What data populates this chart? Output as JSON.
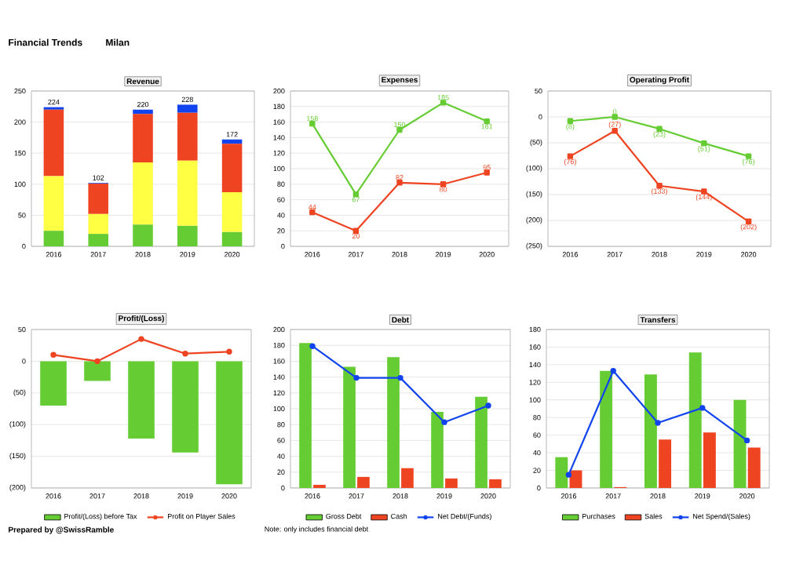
{
  "chart_data": [
    {
      "type": "bar",
      "title": "Revenue",
      "stacked": true,
      "categories": [
        "2016",
        "2017",
        "2018",
        "2019",
        "2020"
      ],
      "ylim": [
        0,
        250
      ],
      "yticks": [
        0,
        50,
        100,
        150,
        200,
        250
      ],
      "grid": "y",
      "totals": [
        "224",
        "102",
        "220",
        "228",
        "172"
      ],
      "series": [
        {
          "color": "#66cc33",
          "values": [
            25,
            20,
            35,
            33,
            23
          ]
        },
        {
          "color": "#ffff44",
          "values": [
            88,
            32,
            100,
            105,
            64
          ]
        },
        {
          "color": "#ee4422",
          "values": [
            107,
            49,
            78,
            77,
            78
          ]
        },
        {
          "color": "#1144ee",
          "values": [
            4,
            1,
            7,
            13,
            7
          ]
        }
      ]
    },
    {
      "type": "line",
      "title": "Expenses",
      "categories": [
        "2016",
        "2017",
        "2018",
        "2019",
        "2020"
      ],
      "ylim": [
        0,
        200
      ],
      "yticks": [
        0,
        20,
        40,
        60,
        80,
        100,
        120,
        140,
        160,
        180,
        200
      ],
      "grid": "y",
      "marker": "square",
      "data_labels": true,
      "series": [
        {
          "color": "#66cc33",
          "values": [
            158,
            67,
            150,
            185,
            161
          ]
        },
        {
          "color": "#ee4422",
          "values": [
            44,
            20,
            82,
            80,
            95
          ]
        }
      ]
    },
    {
      "type": "line",
      "title": "Operating Profit",
      "categories": [
        "2016",
        "2017",
        "2018",
        "2019",
        "2020"
      ],
      "ylim": [
        -250,
        50
      ],
      "yticks": [
        50,
        0,
        {
          "value": -50,
          "label": "(50)"
        },
        {
          "value": -100,
          "label": "(100)"
        },
        {
          "value": -150,
          "label": "(150)"
        },
        {
          "value": -200,
          "label": "(200)"
        },
        {
          "value": -250,
          "label": "(250)"
        }
      ],
      "grid": "y",
      "marker": "square",
      "series": [
        {
          "color": "#66cc33",
          "values": [
            -8,
            0,
            -23,
            -51,
            -76
          ],
          "value_labels": [
            "(8)",
            "0",
            "(23)",
            "(51)",
            "(76)"
          ]
        },
        {
          "color": "#ee4422",
          "values": [
            -76,
            -27,
            -133,
            -144,
            -202
          ],
          "value_labels": [
            "(76)",
            "(27)",
            "(133)",
            "(144)",
            "(202)"
          ]
        }
      ]
    },
    {
      "type": "bar",
      "title": "Profit/(Loss)",
      "categories": [
        "2016",
        "2017",
        "2018",
        "2019",
        "2020"
      ],
      "ylim": [
        -200,
        50
      ],
      "yticks": [
        50,
        0,
        {
          "value": -50,
          "label": "(50)"
        },
        {
          "value": -100,
          "label": "(100)"
        },
        {
          "value": -150,
          "label": "(150)"
        },
        {
          "value": -200,
          "label": "(200)"
        }
      ],
      "grid": "y",
      "legend": "bottom",
      "marker": "circle",
      "series": [
        {
          "name": "Profit/(Loss) before Tax",
          "color": "#66cc33",
          "values": [
            -70,
            -31,
            -122,
            -144,
            -194
          ]
        },
        {
          "name": "Profit on Player Sales",
          "type": "line",
          "color": "#ee4422",
          "values": [
            10,
            0,
            35,
            12,
            15
          ]
        }
      ]
    },
    {
      "type": "bar",
      "title": "Debt",
      "categories": [
        "2016",
        "2017",
        "2018",
        "2019",
        "2020"
      ],
      "ylim": [
        0,
        200
      ],
      "yticks": [
        0,
        20,
        40,
        60,
        80,
        100,
        120,
        140,
        160,
        180,
        200
      ],
      "grid": "y",
      "legend": "bottom",
      "marker": "circle",
      "annotations": [
        "Note: only includes financial debt"
      ],
      "series": [
        {
          "name": "Gross Debt",
          "color": "#66cc33",
          "values": [
            183,
            153,
            165,
            96,
            115
          ]
        },
        {
          "name": "Cash",
          "color": "#ee4422",
          "values": [
            4,
            14,
            25,
            12,
            11
          ]
        },
        {
          "name": "Net Debt/(Funds)",
          "type": "line",
          "color": "#1144ee",
          "values": [
            179,
            139,
            139,
            83,
            104
          ]
        }
      ]
    },
    {
      "type": "bar",
      "title": "Transfers",
      "categories": [
        "2016",
        "2017",
        "2018",
        "2019",
        "2020"
      ],
      "ylim": [
        0,
        180
      ],
      "yticks": [
        0,
        20,
        40,
        60,
        80,
        100,
        120,
        140,
        160,
        180
      ],
      "grid": "y",
      "legend": "bottom",
      "marker": "circle",
      "series": [
        {
          "name": "Purchases",
          "color": "#66cc33",
          "values": [
            35,
            133,
            129,
            154,
            100
          ]
        },
        {
          "name": "Sales",
          "color": "#ee4422",
          "values": [
            20,
            1,
            55,
            63,
            46
          ]
        },
        {
          "name": "Net Spend/(Sales)",
          "type": "line",
          "color": "#1144ee",
          "values": [
            15,
            133,
            74,
            91,
            54
          ]
        }
      ]
    },
    {
      "type": "other",
      "title": "Financial Trends",
      "subtitle": "Milan",
      "annotations": [
        "Prepared by @SwissRamble"
      ]
    }
  ]
}
